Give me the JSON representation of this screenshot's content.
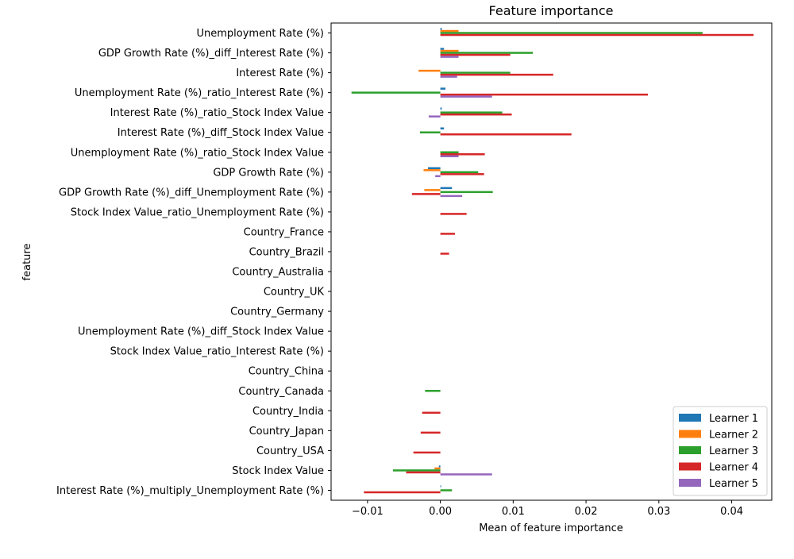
{
  "chart_data": {
    "type": "bar",
    "orientation": "horizontal",
    "title": "Feature importance",
    "xlabel": "Mean of feature importance",
    "ylabel": "feature",
    "xlim": [
      -0.015,
      0.0455
    ],
    "xticks": [
      -0.01,
      0.0,
      0.01,
      0.02,
      0.03,
      0.04
    ],
    "xtick_labels": [
      "−0.01",
      "0.00",
      "0.01",
      "0.02",
      "0.03",
      "0.04"
    ],
    "grid": false,
    "legend_position": "lower-right",
    "categories": [
      "Unemployment Rate (%)",
      "GDP Growth Rate (%)_diff_Interest Rate (%)",
      "Interest Rate (%)",
      "Unemployment Rate (%)_ratio_Interest Rate (%)",
      "Interest Rate (%)_ratio_Stock Index Value",
      "Interest Rate (%)_diff_Stock Index Value",
      "Unemployment Rate (%)_ratio_Stock Index Value",
      "GDP Growth Rate (%)",
      "GDP Growth Rate (%)_diff_Unemployment Rate (%)",
      "Stock Index Value_ratio_Unemployment Rate (%)",
      "Country_France",
      "Country_Brazil",
      "Country_Australia",
      "Country_UK",
      "Country_Germany",
      "Unemployment Rate (%)_diff_Stock Index Value",
      "Stock Index Value_ratio_Interest Rate (%)",
      "Country_China",
      "Country_Canada",
      "Country_India",
      "Country_Japan",
      "Country_USA",
      "Stock Index Value",
      "Interest Rate (%)_multiply_Unemployment Rate (%)"
    ],
    "series": [
      {
        "name": "Learner 1",
        "color": "#1f77b4",
        "values": [
          0.0002,
          0.0005,
          0.0,
          0.0007,
          0.0002,
          0.0005,
          0.0,
          -0.0017,
          0.0016,
          0.0,
          0.0,
          0.0,
          0.0,
          0.0,
          0.0,
          0.0,
          0.0,
          0.0,
          0.0,
          0.0,
          0.0,
          0.0,
          -0.0002,
          0.0001
        ]
      },
      {
        "name": "Learner 2",
        "color": "#ff7f0e",
        "values": [
          0.0025,
          0.0025,
          -0.003,
          0.0,
          0.0,
          0.0,
          0.0,
          -0.0023,
          -0.0022,
          0.0,
          0.0,
          0.0,
          0.0,
          0.0,
          0.0,
          0.0,
          0.0,
          0.0,
          0.0,
          0.0,
          0.0,
          0.0,
          -0.0008,
          0.0
        ]
      },
      {
        "name": "Learner 3",
        "color": "#2ca02c",
        "values": [
          0.036,
          0.0127,
          0.0096,
          -0.0122,
          0.0085,
          -0.0028,
          0.0025,
          0.0052,
          0.0072,
          0.0,
          0.0,
          0.0,
          0.0,
          0.0,
          0.0,
          0.0,
          0.0,
          0.0,
          -0.0021,
          0.0,
          0.0,
          0.0,
          -0.0065,
          0.0016
        ]
      },
      {
        "name": "Learner 4",
        "color": "#d62728",
        "values": [
          0.043,
          0.0096,
          0.0155,
          0.0285,
          0.0098,
          0.018,
          0.0061,
          0.006,
          -0.0039,
          0.0036,
          0.002,
          0.0012,
          0.0,
          0.0,
          0.0,
          0.0,
          0.0,
          0.0,
          0.0,
          -0.0025,
          -0.0027,
          -0.0037,
          -0.0047,
          -0.0105
        ]
      },
      {
        "name": "Learner 5",
        "color": "#9467bd",
        "values": [
          0.0,
          0.0025,
          0.0023,
          0.0071,
          -0.0016,
          0.0,
          0.0025,
          -0.0007,
          0.003,
          0.0,
          0.0,
          0.0,
          0.0,
          0.0,
          0.0,
          0.0,
          0.0,
          0.0,
          0.0,
          0.0,
          0.0,
          0.0,
          0.0071,
          0.0
        ]
      }
    ]
  }
}
